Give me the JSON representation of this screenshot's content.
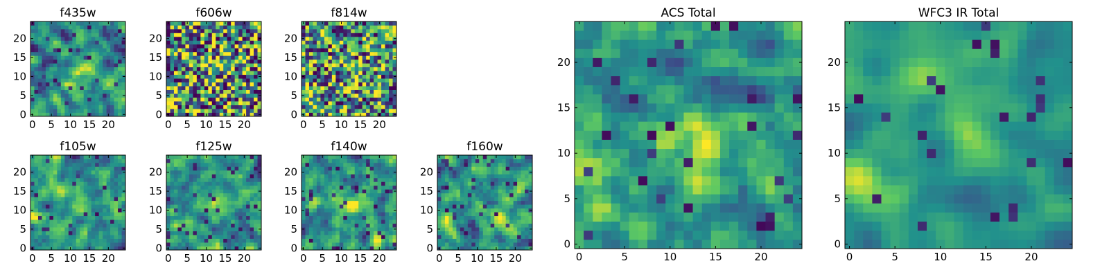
{
  "figure": {
    "background": "#ffffff",
    "colormap": "viridis",
    "colormap_stops": [
      "#440154",
      "#3b528b",
      "#21918c",
      "#5ec962",
      "#fde725"
    ]
  },
  "chart_data": [
    {
      "type": "heatmap",
      "title": "f435w",
      "grid_size": 25,
      "xlim": [
        0,
        24
      ],
      "ylim": [
        0,
        24
      ],
      "xticks": [
        0,
        5,
        10,
        15,
        20
      ],
      "yticks": [
        0,
        5,
        10,
        15,
        20
      ],
      "seed": 11,
      "noise": 0.62,
      "smooth": 1,
      "bright_centers": [
        [
          14,
          13
        ],
        [
          12,
          8
        ]
      ],
      "dark_fraction": 0.06,
      "colorscale": "viridis"
    },
    {
      "type": "heatmap",
      "title": "f606w",
      "grid_size": 25,
      "xlim": [
        0,
        24
      ],
      "ylim": [
        0,
        24
      ],
      "xticks": [
        0,
        5,
        10,
        15,
        20
      ],
      "yticks": [
        0,
        5,
        10,
        15,
        20
      ],
      "seed": 23,
      "noise": 0.78,
      "smooth": 0,
      "bright_centers": [
        [
          13,
          13
        ],
        [
          1,
          4
        ]
      ],
      "dark_fraction": 0.08,
      "colorscale": "viridis"
    },
    {
      "type": "heatmap",
      "title": "f814w",
      "grid_size": 25,
      "xlim": [
        0,
        24
      ],
      "ylim": [
        0,
        24
      ],
      "xticks": [
        0,
        5,
        10,
        15,
        20
      ],
      "yticks": [
        0,
        5,
        10,
        15,
        20
      ],
      "seed": 37,
      "noise": 0.7,
      "smooth": 0,
      "bright_centers": [
        [
          14,
          9
        ],
        [
          1,
          5
        ]
      ],
      "dark_fraction": 0.06,
      "colorscale": "viridis"
    },
    {
      "type": "heatmap",
      "title": "f105w",
      "grid_size": 25,
      "xlim": [
        0,
        24
      ],
      "ylim": [
        0,
        24
      ],
      "xticks": [
        0,
        5,
        10,
        15,
        20
      ],
      "yticks": [
        0,
        5,
        10,
        15,
        20
      ],
      "seed": 41,
      "noise": 0.55,
      "smooth": 1,
      "bright_centers": [
        [
          13,
          12
        ],
        [
          1,
          8
        ]
      ],
      "dark_fraction": 0.05,
      "colorscale": "viridis"
    },
    {
      "type": "heatmap",
      "title": "f125w",
      "grid_size": 25,
      "xlim": [
        0,
        24
      ],
      "ylim": [
        0,
        24
      ],
      "xticks": [
        0,
        5,
        10,
        15,
        20
      ],
      "yticks": [
        0,
        5,
        10,
        15,
        20
      ],
      "seed": 53,
      "noise": 0.55,
      "smooth": 1,
      "bright_centers": [
        [
          14,
          11
        ],
        [
          2,
          6
        ]
      ],
      "dark_fraction": 0.05,
      "colorscale": "viridis"
    },
    {
      "type": "heatmap",
      "title": "f140w",
      "grid_size": 25,
      "xlim": [
        0,
        24
      ],
      "ylim": [
        0,
        24
      ],
      "xticks": [
        0,
        5,
        10,
        15,
        20
      ],
      "yticks": [
        0,
        5,
        10,
        15,
        20
      ],
      "seed": 67,
      "noise": 0.6,
      "smooth": 1,
      "bright_centers": [
        [
          13,
          12
        ],
        [
          21,
          2
        ]
      ],
      "dark_fraction": 0.07,
      "colorscale": "viridis"
    },
    {
      "type": "heatmap",
      "title": "f160w",
      "grid_size": 25,
      "xlim": [
        0,
        24
      ],
      "ylim": [
        0,
        24
      ],
      "xticks": [
        0,
        5,
        10,
        15,
        20
      ],
      "yticks": [
        0,
        5,
        10,
        15,
        20
      ],
      "seed": 79,
      "noise": 0.6,
      "smooth": 1,
      "bright_centers": [
        [
          14,
          8
        ],
        [
          2,
          6
        ]
      ],
      "dark_fraction": 0.06,
      "colorscale": "viridis"
    },
    {
      "type": "heatmap",
      "title": "ACS Total",
      "grid_size": 25,
      "xlim": [
        0,
        24
      ],
      "ylim": [
        0,
        24
      ],
      "xticks": [
        0,
        5,
        10,
        15,
        20
      ],
      "yticks": [
        0,
        5,
        10,
        15,
        20
      ],
      "seed": 97,
      "noise": 0.5,
      "smooth": 1,
      "bright_centers": [
        [
          13,
          13
        ],
        [
          14,
          9
        ],
        [
          1,
          7
        ]
      ],
      "dark_fraction": 0.05,
      "colorscale": "viridis"
    },
    {
      "type": "heatmap",
      "title": "WFC3 IR Total",
      "grid_size": 25,
      "xlim": [
        0,
        24
      ],
      "ylim": [
        0,
        24
      ],
      "xticks": [
        0,
        5,
        10,
        15,
        20
      ],
      "yticks": [
        0,
        5,
        10,
        15,
        20
      ],
      "seed": 131,
      "noise": 0.45,
      "smooth": 2,
      "bright_centers": [
        [
          13,
          12
        ],
        [
          1,
          7
        ],
        [
          8,
          19
        ]
      ],
      "dark_fraction": 0.04,
      "colorscale": "viridis"
    }
  ]
}
